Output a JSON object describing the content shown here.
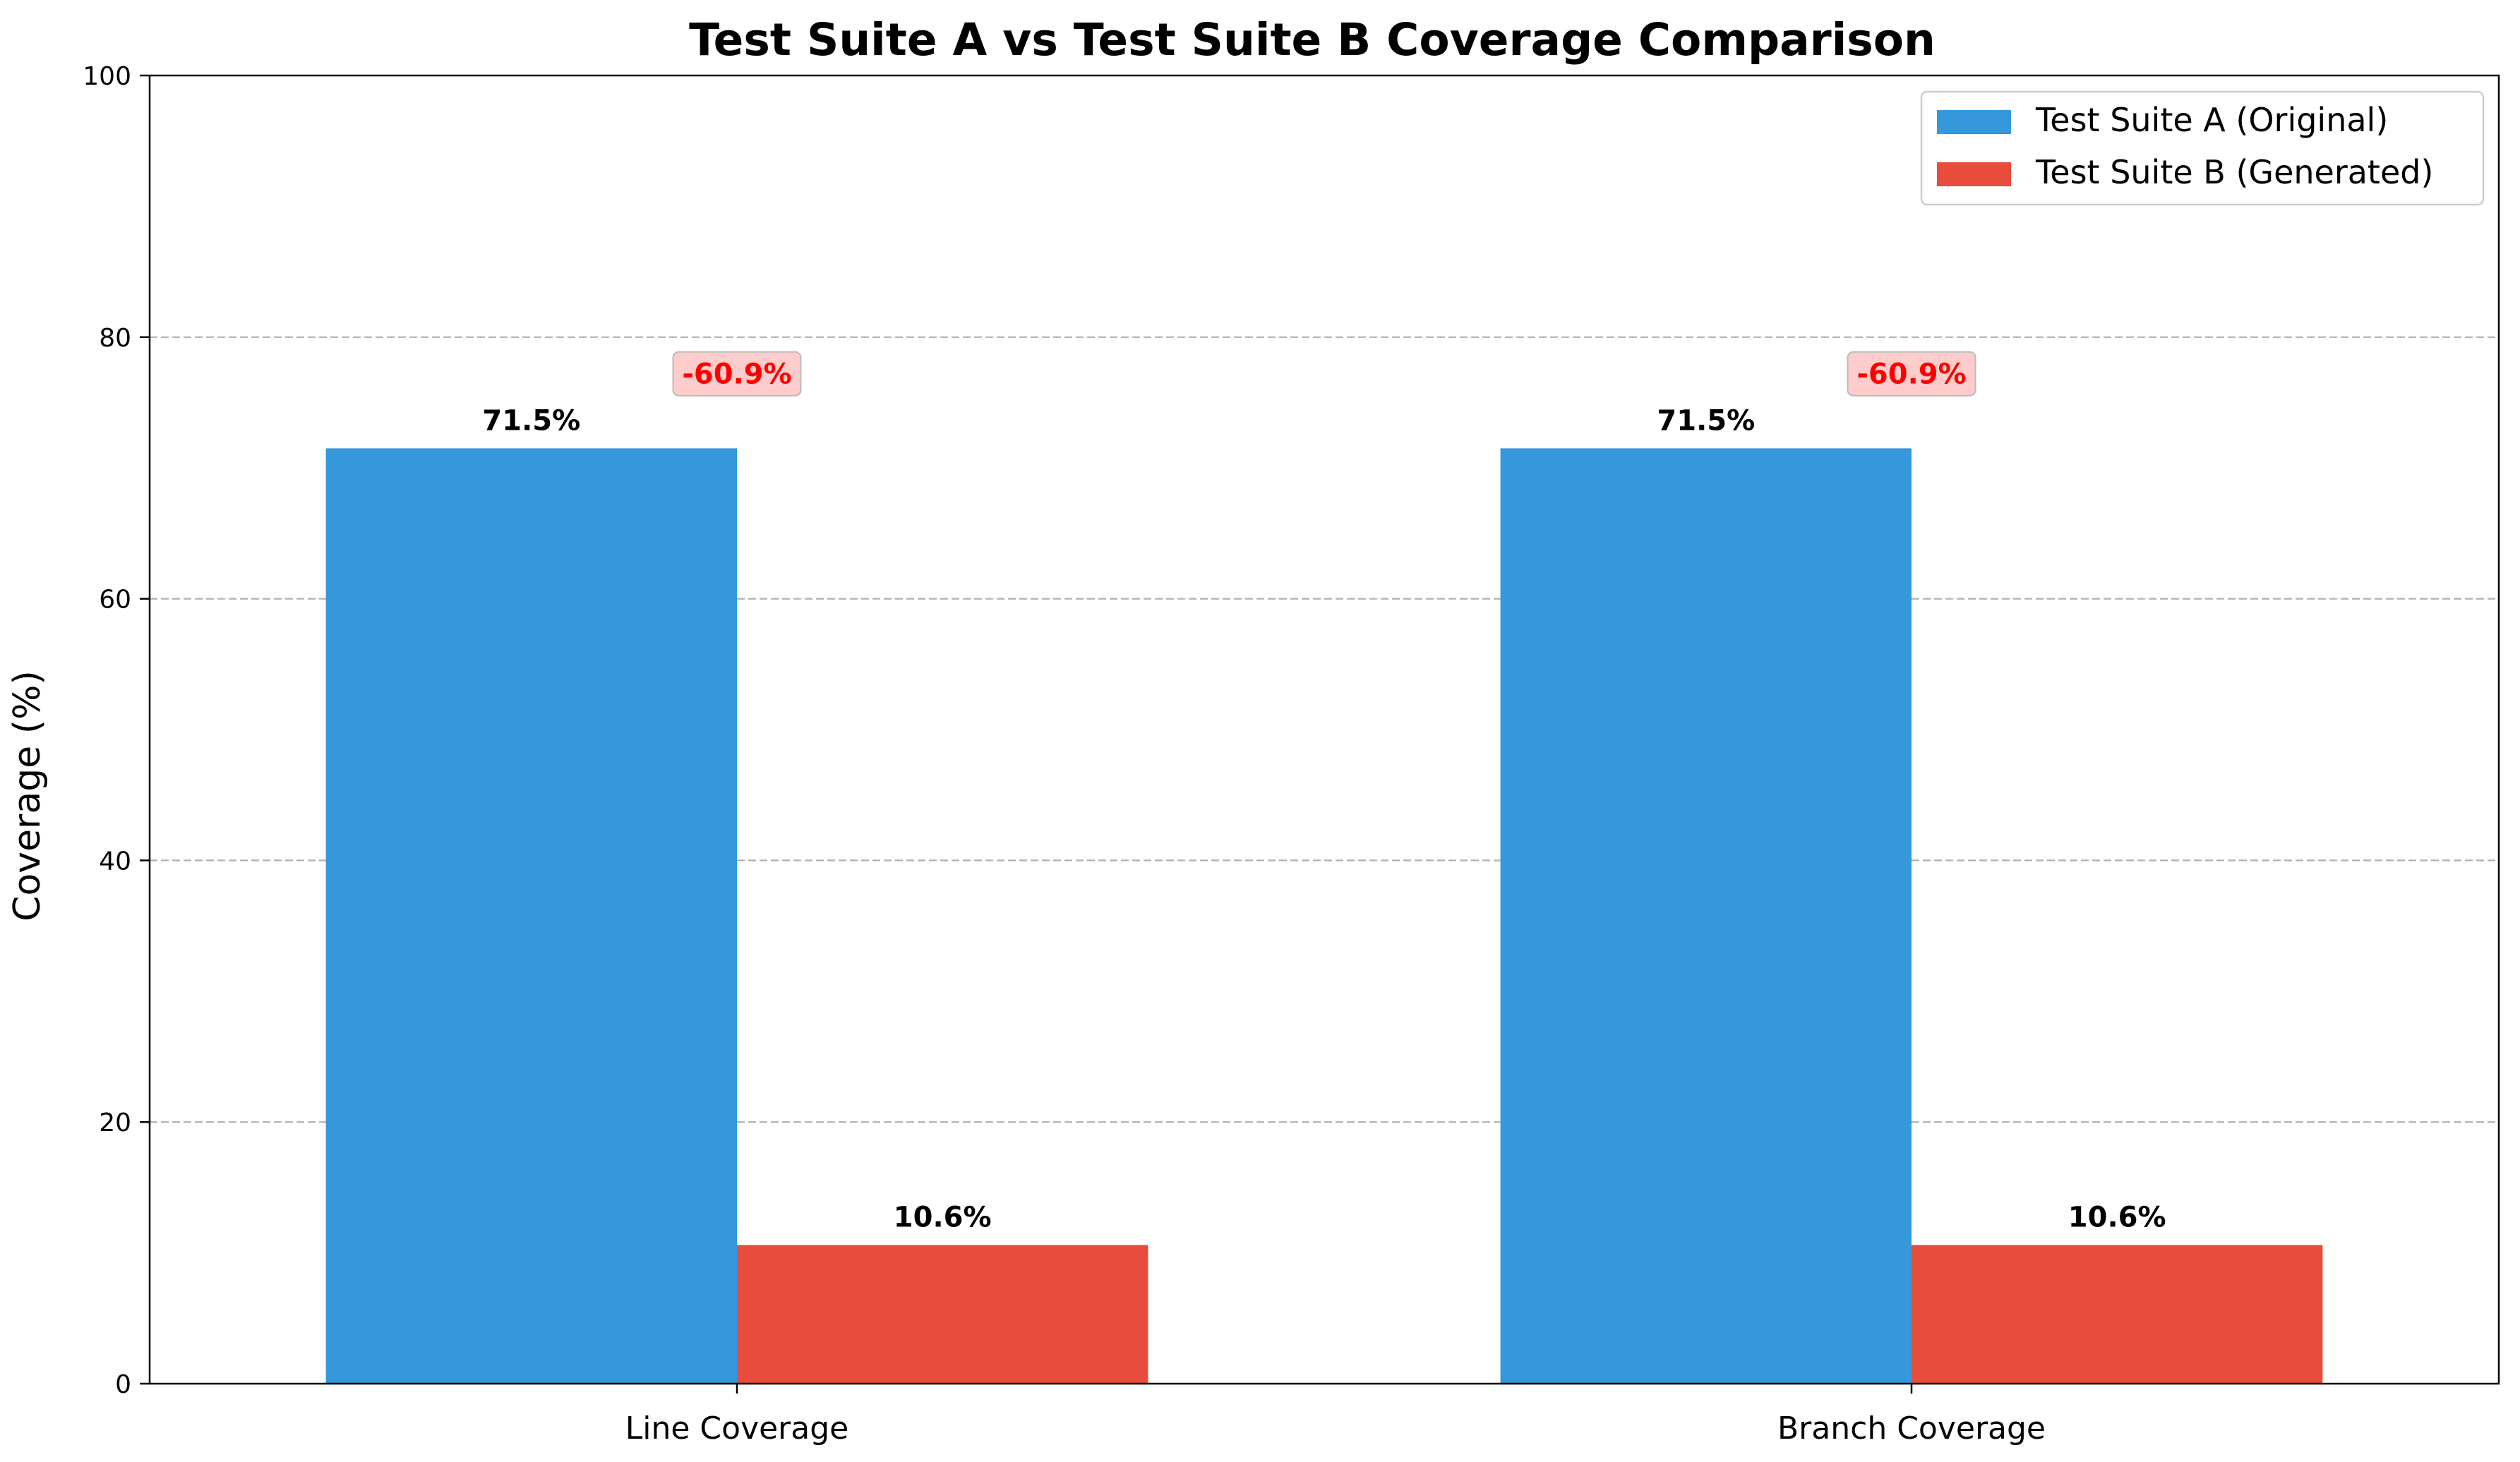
{
  "chart_data": {
    "type": "bar",
    "title": "Test Suite A vs Test Suite B Coverage Comparison",
    "xlabel": "",
    "ylabel": "Coverage (%)",
    "ylim": [
      0,
      100
    ],
    "yticks": [
      0,
      20,
      40,
      60,
      80,
      100
    ],
    "grid": "y-dashed",
    "legend_position": "top-right",
    "categories": [
      "Line Coverage",
      "Branch Coverage"
    ],
    "series": [
      {
        "name": "Test Suite A (Original)",
        "values": [
          71.5,
          71.5
        ],
        "color": "#3498db"
      },
      {
        "name": "Test Suite B (Generated)",
        "values": [
          10.6,
          10.6
        ],
        "color": "#e74c3c"
      }
    ],
    "bar_labels": [
      [
        "71.5%",
        "71.5%"
      ],
      [
        "10.6%",
        "10.6%"
      ]
    ],
    "difference_labels": [
      "-60.9%",
      "-60.9%"
    ],
    "difference_label_color": "#ff0000",
    "difference_box_color": "#ffcccc"
  }
}
